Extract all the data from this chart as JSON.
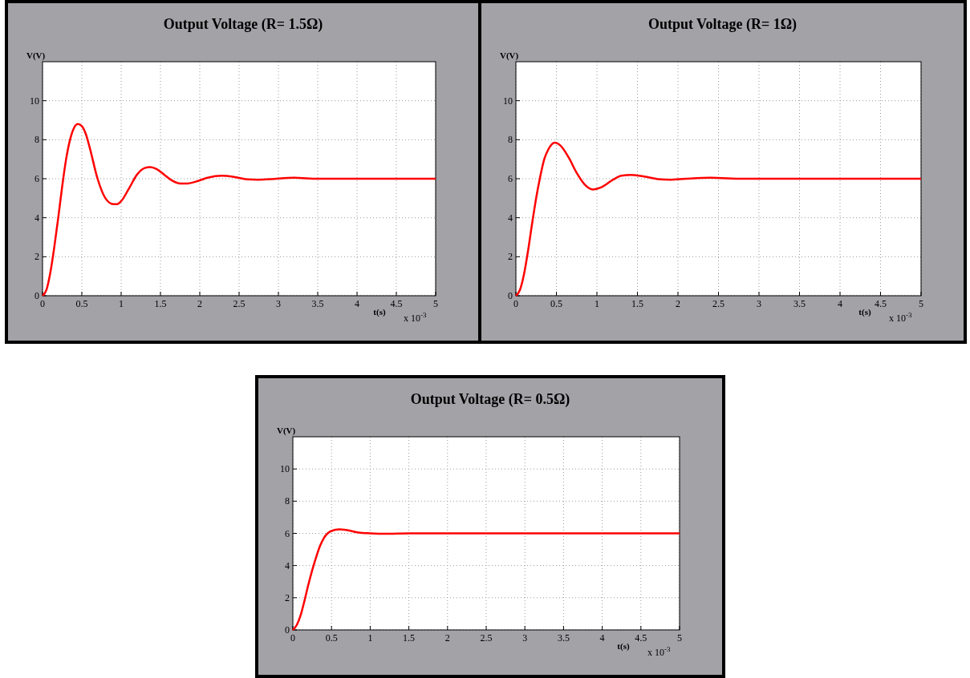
{
  "chart_data": [
    {
      "type": "line",
      "title": "Output Voltage (R= 1.5Ω)",
      "xlabel": "t(s)",
      "ylabel": "V(V)",
      "annotations": [
        "x 10$^{-3}$"
      ],
      "xlim": [
        0,
        5
      ],
      "ylim": [
        0,
        12
      ],
      "xticks": [
        0,
        0.5,
        1,
        1.5,
        2,
        2.5,
        3,
        3.5,
        4,
        4.5,
        5
      ],
      "yticks": [
        0,
        2,
        4,
        6,
        8,
        10
      ],
      "grid": true,
      "x": [
        0,
        0.05,
        0.1,
        0.15,
        0.2,
        0.25,
        0.3,
        0.35,
        0.4,
        0.45,
        0.5,
        0.55,
        0.6,
        0.7,
        0.8,
        0.9,
        0.95,
        1.0,
        1.1,
        1.2,
        1.3,
        1.37,
        1.45,
        1.55,
        1.65,
        1.75,
        1.83,
        1.95,
        2.1,
        2.28,
        2.45,
        2.6,
        2.73,
        2.9,
        3.2,
        3.5,
        4,
        5
      ],
      "series": [
        {
          "color": "#ff0000",
          "values": [
            0,
            0.3,
            1.2,
            2.5,
            4.0,
            5.6,
            7.0,
            8.0,
            8.6,
            8.8,
            8.7,
            8.3,
            7.6,
            6.0,
            5.0,
            4.7,
            4.7,
            4.85,
            5.5,
            6.2,
            6.55,
            6.6,
            6.5,
            6.2,
            5.9,
            5.75,
            5.75,
            5.85,
            6.05,
            6.15,
            6.08,
            5.97,
            5.95,
            5.98,
            6.05,
            6.0,
            6,
            6
          ]
        }
      ]
    },
    {
      "type": "line",
      "title": "Output Voltage (R= 1Ω)",
      "xlabel": "t(s)",
      "ylabel": "V(V)",
      "annotations": [
        "x 10$^{-3}$"
      ],
      "xlim": [
        0,
        5
      ],
      "ylim": [
        0,
        12
      ],
      "xticks": [
        0,
        0.5,
        1,
        1.5,
        2,
        2.5,
        3,
        3.5,
        4,
        4.5,
        5
      ],
      "yticks": [
        0,
        2,
        4,
        6,
        8,
        10
      ],
      "grid": true,
      "x": [
        0,
        0.05,
        0.1,
        0.15,
        0.2,
        0.25,
        0.3,
        0.35,
        0.4,
        0.48,
        0.55,
        0.65,
        0.75,
        0.85,
        0.95,
        1.05,
        1.2,
        1.3,
        1.43,
        1.6,
        1.75,
        1.9,
        2.1,
        2.4,
        2.8,
        5
      ],
      "series": [
        {
          "color": "#ff0000",
          "values": [
            0,
            0.3,
            1.1,
            2.3,
            3.7,
            5.0,
            6.1,
            7.0,
            7.5,
            7.85,
            7.7,
            7.1,
            6.3,
            5.7,
            5.45,
            5.55,
            5.95,
            6.15,
            6.2,
            6.1,
            5.98,
            5.95,
            6.0,
            6.05,
            6.0,
            6
          ]
        }
      ]
    },
    {
      "type": "line",
      "title": "Output Voltage (R= 0.5Ω)",
      "xlabel": "t(s)",
      "ylabel": "V(V)",
      "annotations": [
        "x 10$^{-3}$"
      ],
      "xlim": [
        0,
        5
      ],
      "ylim": [
        0,
        12
      ],
      "xticks": [
        0,
        0.5,
        1,
        1.5,
        2,
        2.5,
        3,
        3.5,
        4,
        4.5,
        5
      ],
      "yticks": [
        0,
        2,
        4,
        6,
        8,
        10
      ],
      "grid": true,
      "x": [
        0,
        0.05,
        0.1,
        0.15,
        0.2,
        0.25,
        0.3,
        0.35,
        0.4,
        0.5,
        0.6,
        0.7,
        0.85,
        1.0,
        1.2,
        1.5,
        5
      ],
      "series": [
        {
          "color": "#ff0000",
          "values": [
            0,
            0.3,
            0.9,
            1.8,
            2.8,
            3.7,
            4.5,
            5.2,
            5.7,
            6.15,
            6.25,
            6.2,
            6.05,
            6.0,
            5.97,
            6.0,
            6
          ]
        }
      ]
    }
  ]
}
